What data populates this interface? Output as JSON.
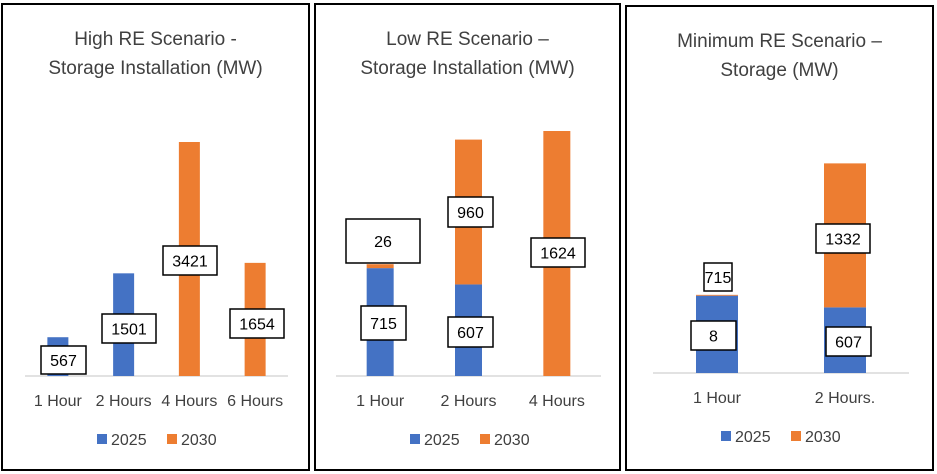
{
  "colors": {
    "2025": "#4472C4",
    "2030": "#ED7D31",
    "axis": "#D9D9D9",
    "text": "#404040"
  },
  "chart_data": [
    {
      "type": "bar",
      "stacked": true,
      "title": [
        "High RE Scenario -",
        "Storage Installation (MW)"
      ],
      "categories": [
        "1 Hour",
        "2 Hours",
        "4 Hours",
        "6 Hours"
      ],
      "series": [
        {
          "name": "2025",
          "values": [
            567,
            1501,
            0,
            0
          ]
        },
        {
          "name": "2030",
          "values": [
            0,
            0,
            3421,
            1654
          ]
        }
      ],
      "data_labels": [
        {
          "category": 0,
          "series": 0,
          "text": "567"
        },
        {
          "category": 1,
          "series": 0,
          "text": "1501"
        },
        {
          "category": 2,
          "series": 1,
          "text": "3421"
        },
        {
          "category": 3,
          "series": 1,
          "text": "1654"
        }
      ],
      "ylim": [
        0,
        3600
      ],
      "legend": "bottom",
      "grid": false
    },
    {
      "type": "bar",
      "stacked": true,
      "title": [
        "Low RE Scenario –",
        "Storage Installation (MW)"
      ],
      "categories": [
        "1 Hour",
        "2 Hours",
        "4 Hours"
      ],
      "series": [
        {
          "name": "2025",
          "values": [
            715,
            607,
            0
          ]
        },
        {
          "name": "2030",
          "values": [
            26,
            960,
            1624
          ]
        }
      ],
      "data_labels": [
        {
          "category": 0,
          "series": 0,
          "text": "715"
        },
        {
          "category": 0,
          "series": 1,
          "text": "26"
        },
        {
          "category": 1,
          "series": 0,
          "text": "607"
        },
        {
          "category": 1,
          "series": 1,
          "text": "960"
        },
        {
          "category": 2,
          "series": 1,
          "text": "1624"
        }
      ],
      "ylim": [
        0,
        1650
      ],
      "legend": "bottom",
      "grid": false
    },
    {
      "type": "bar",
      "stacked": true,
      "title": [
        "Minimum RE Scenario –",
        "Storage (MW)"
      ],
      "categories": [
        "1 Hour",
        "2 Hours."
      ],
      "series": [
        {
          "name": "2025",
          "values": [
            715,
            607
          ]
        },
        {
          "name": "2030",
          "values": [
            8,
            1332
          ]
        }
      ],
      "data_labels": [
        {
          "category": 0,
          "series": 0,
          "text": "715"
        },
        {
          "category": 0,
          "series": 1,
          "text": "8"
        },
        {
          "category": 1,
          "series": 0,
          "text": "607"
        },
        {
          "category": 1,
          "series": 1,
          "text": "1332"
        }
      ],
      "ylim": [
        0,
        2250
      ],
      "legend": "bottom",
      "grid": false
    }
  ]
}
